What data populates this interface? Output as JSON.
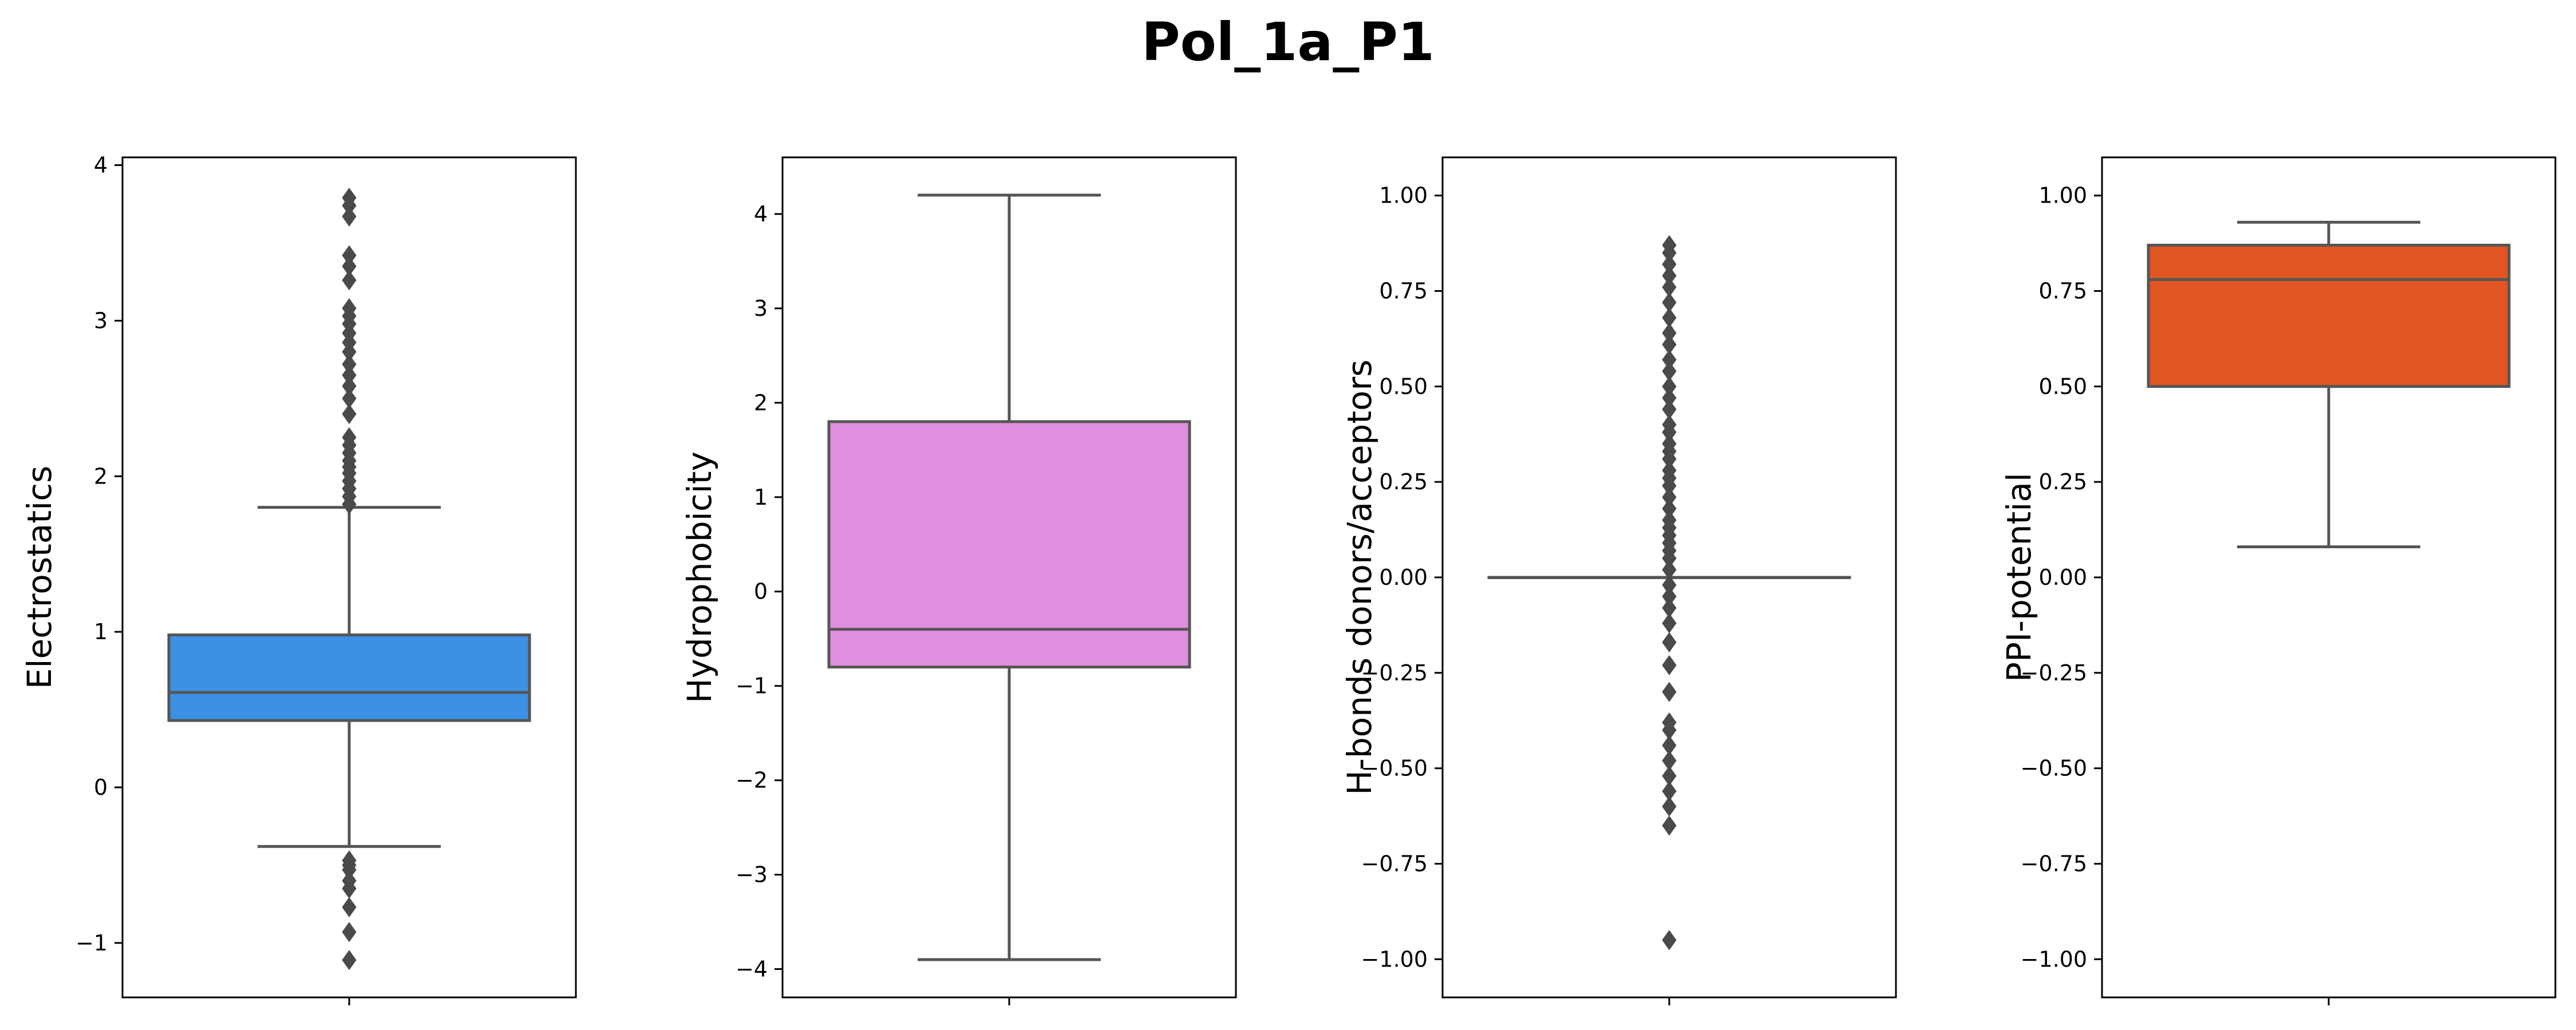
{
  "chart_data": {
    "title": "Pol_1a_P1",
    "type": "box",
    "subplots": [
      {
        "ylabel": "Electrostatics",
        "color": "#3a91e6",
        "ylim": [
          -1.35,
          4.05
        ],
        "yticks": [
          -1,
          0,
          1,
          2,
          3,
          4
        ],
        "ytick_labels": [
          "−1",
          "0",
          "1",
          "2",
          "3",
          "4"
        ],
        "whisker_low": -0.38,
        "q1": 0.43,
        "median": 0.61,
        "q3": 0.98,
        "whisker_high": 1.8,
        "outliers": [
          -0.47,
          -0.5,
          -0.53,
          -0.6,
          -0.65,
          -0.77,
          -0.93,
          -1.11,
          1.82,
          1.87,
          1.92,
          1.97,
          2.02,
          2.06,
          2.1,
          2.15,
          2.2,
          2.25,
          2.4,
          2.5,
          2.58,
          2.65,
          2.72,
          2.8,
          2.86,
          2.92,
          2.98,
          3.03,
          3.08,
          3.26,
          3.35,
          3.42,
          3.67,
          3.74,
          3.79
        ]
      },
      {
        "ylabel": "Hydrophobicity",
        "color": "#e08fe0",
        "ylim": [
          -4.3,
          4.6
        ],
        "yticks": [
          -4,
          -3,
          -2,
          -1,
          0,
          1,
          2,
          3,
          4
        ],
        "ytick_labels": [
          "−4",
          "−3",
          "−2",
          "−1",
          "0",
          "1",
          "2",
          "3",
          "4"
        ],
        "whisker_low": -3.9,
        "q1": -0.8,
        "median": -0.4,
        "q3": 1.8,
        "whisker_high": 4.2,
        "outliers": []
      },
      {
        "ylabel": "H-bonds donors/acceptors",
        "color": "#e8a0a0",
        "ylim": [
          -1.1,
          1.1
        ],
        "yticks": [
          -1.0,
          -0.75,
          -0.5,
          -0.25,
          0.0,
          0.25,
          0.5,
          0.75,
          1.0
        ],
        "ytick_labels": [
          "−1.00",
          "−0.75",
          "−0.50",
          "−0.25",
          "0.00",
          "0.25",
          "0.50",
          "0.75",
          "1.00"
        ],
        "whisker_low": 0.0,
        "q1": 0.0,
        "median": 0.0,
        "q3": 0.0,
        "whisker_high": 0.0,
        "outliers": [
          -0.95,
          -0.65,
          -0.6,
          -0.56,
          -0.52,
          -0.48,
          -0.44,
          -0.4,
          -0.38,
          -0.3,
          -0.23,
          -0.17,
          -0.12,
          -0.08,
          -0.05,
          -0.02,
          0.02,
          0.05,
          0.07,
          0.09,
          0.11,
          0.13,
          0.15,
          0.18,
          0.21,
          0.24,
          0.26,
          0.28,
          0.31,
          0.33,
          0.35,
          0.38,
          0.4,
          0.44,
          0.47,
          0.5,
          0.54,
          0.57,
          0.61,
          0.64,
          0.68,
          0.72,
          0.76,
          0.79,
          0.82,
          0.85,
          0.87
        ]
      },
      {
        "ylabel": "PPI-potential",
        "color": "#e05522",
        "ylim": [
          -1.1,
          1.1
        ],
        "yticks": [
          -1.0,
          -0.75,
          -0.5,
          -0.25,
          0.0,
          0.25,
          0.5,
          0.75,
          1.0
        ],
        "ytick_labels": [
          "−1.00",
          "−0.75",
          "−0.50",
          "−0.25",
          "0.00",
          "0.25",
          "0.50",
          "0.75",
          "1.00"
        ],
        "whisker_low": 0.08,
        "q1": 0.5,
        "median": 0.78,
        "q3": 0.87,
        "whisker_high": 0.93,
        "outliers": []
      }
    ]
  }
}
